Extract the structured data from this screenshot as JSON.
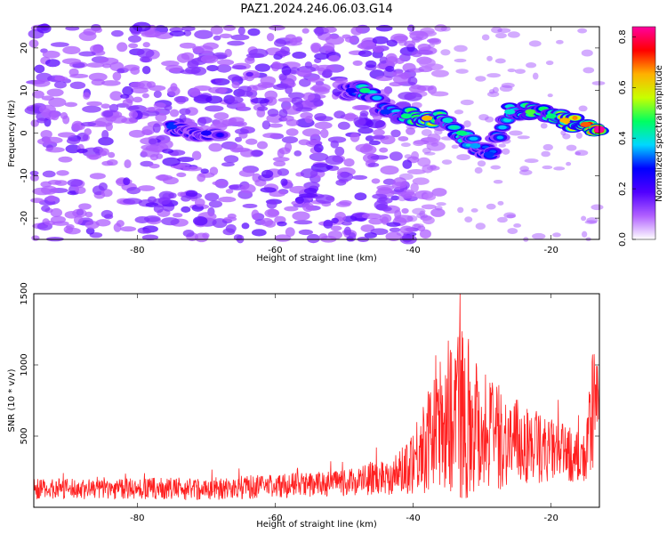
{
  "title": "PAZ1.2024.246.06.03.G14",
  "chart_data": [
    {
      "type": "heatmap",
      "xlabel": "Height of straight line (km)",
      "ylabel": "Frequency (Hz)",
      "xlim": [
        -95,
        -13
      ],
      "ylim": [
        -25,
        25
      ],
      "xticks": [
        "-80",
        "-60",
        "-40",
        "-20"
      ],
      "yticks": [
        "20",
        "10",
        "0",
        "-10",
        "-20"
      ],
      "colorbar": {
        "label": "Normalized spectral amplitude",
        "range": [
          0.0,
          0.84
        ],
        "ticks": [
          "0.0",
          "0.2",
          "0.4",
          "0.6",
          "0.8"
        ],
        "colormap": [
          "#ffffff",
          "#b060ff",
          "#5000ff",
          "#0000ff",
          "#00d8ff",
          "#00ff60",
          "#c8ff00",
          "#ffb000",
          "#ff0000",
          "#ff00a0"
        ]
      },
      "signal_ridge": [
        {
          "x": -75,
          "y": 1.5,
          "amp": 0.3
        },
        {
          "x": -70,
          "y": 0,
          "amp": 0.25
        },
        {
          "x": -49,
          "y": 10,
          "amp": 0.25
        },
        {
          "x": -47,
          "y": 10,
          "amp": 0.45
        },
        {
          "x": -44,
          "y": 5,
          "amp": 0.3
        },
        {
          "x": -41,
          "y": 4,
          "amp": 0.45
        },
        {
          "x": -38,
          "y": 3.5,
          "amp": 0.65
        },
        {
          "x": -35,
          "y": 3,
          "amp": 0.4
        },
        {
          "x": -33,
          "y": 0,
          "amp": 0.45
        },
        {
          "x": -31,
          "y": -3,
          "amp": 0.35
        },
        {
          "x": -29,
          "y": -5,
          "amp": 0.3
        },
        {
          "x": -26,
          "y": 5,
          "amp": 0.4
        },
        {
          "x": -23,
          "y": 5,
          "amp": 0.5
        },
        {
          "x": -20,
          "y": 4,
          "amp": 0.45
        },
        {
          "x": -18,
          "y": 3,
          "amp": 0.65
        },
        {
          "x": -15,
          "y": 2,
          "amp": 0.7
        },
        {
          "x": -13,
          "y": 1,
          "amp": 0.84
        }
      ]
    },
    {
      "type": "line",
      "xlabel": "Height of straight line (km)",
      "ylabel": "SNR (10 * v/v)",
      "xlim": [
        -95,
        -13
      ],
      "ylim": [
        0,
        1500
      ],
      "xticks": [
        "-80",
        "-60",
        "-40",
        "-20"
      ],
      "yticks": [
        "1500",
        "1000",
        "500"
      ],
      "series_color": "#ff0000",
      "envelope": [
        {
          "x": -95,
          "base": 130,
          "spread": 70
        },
        {
          "x": -70,
          "base": 130,
          "spread": 80
        },
        {
          "x": -50,
          "base": 170,
          "spread": 90
        },
        {
          "x": -42,
          "base": 240,
          "spread": 150
        },
        {
          "x": -38,
          "base": 450,
          "spread": 350
        },
        {
          "x": -35,
          "base": 650,
          "spread": 550
        },
        {
          "x": -33,
          "base": 700,
          "spread": 650
        },
        {
          "x": -30,
          "base": 550,
          "spread": 450
        },
        {
          "x": -27,
          "base": 480,
          "spread": 350
        },
        {
          "x": -22,
          "base": 420,
          "spread": 250
        },
        {
          "x": -18,
          "base": 380,
          "spread": 200
        },
        {
          "x": -15,
          "base": 330,
          "spread": 180
        },
        {
          "x": -14,
          "base": 650,
          "spread": 450
        },
        {
          "x": -13,
          "base": 800,
          "spread": 250
        }
      ]
    }
  ]
}
